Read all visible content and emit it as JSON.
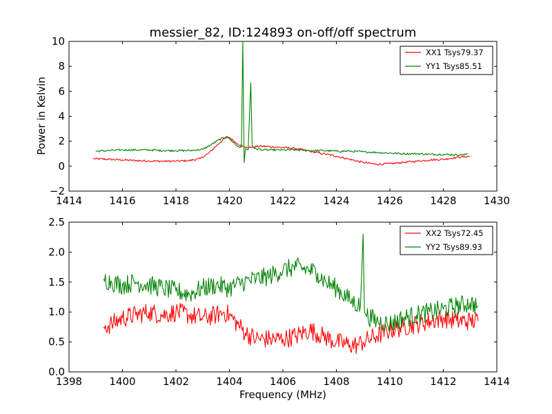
{
  "chart_data": [
    {
      "type": "line",
      "title": "messier_82, ID:124893 on-off/off spectrum",
      "xlabel": "",
      "ylabel": "Power in Kelvin",
      "xlim": [
        1414,
        1430
      ],
      "ylim": [
        -2,
        10
      ],
      "grid": false,
      "legend_position": "top-right",
      "xticks": [
        1414,
        1416,
        1418,
        1420,
        1422,
        1424,
        1426,
        1428,
        1430
      ],
      "yticks": [
        -2,
        0,
        2,
        4,
        6,
        8,
        10
      ],
      "xtick_labels": [
        "1414",
        "1416",
        "1418",
        "1420",
        "1422",
        "1424",
        "1426",
        "1428",
        "1430"
      ],
      "ytick_labels": [
        "−2",
        "0",
        "2",
        "4",
        "6",
        "8",
        "10"
      ],
      "series": [
        {
          "name": "XX1 Tsys79.37",
          "color": "#ff0000",
          "x": [
            1414.9,
            1415.5,
            1416,
            1416.5,
            1417,
            1417.5,
            1418,
            1418.5,
            1418.9,
            1419.2,
            1419.5,
            1419.8,
            1420,
            1420.3,
            1420.5,
            1420.6,
            1420.8,
            1420.9,
            1421.2,
            1421.6,
            1422,
            1422.5,
            1423,
            1423.5,
            1424,
            1424.5,
            1425,
            1425.5,
            1426,
            1426.5,
            1427,
            1427.5,
            1428,
            1428.5,
            1429
          ],
          "y": [
            0.6,
            0.55,
            0.5,
            0.45,
            0.42,
            0.4,
            0.4,
            0.45,
            0.6,
            1.0,
            1.6,
            2.2,
            2.3,
            1.8,
            1.6,
            1.5,
            1.5,
            1.55,
            1.6,
            1.55,
            1.5,
            1.4,
            1.2,
            1.0,
            0.8,
            0.55,
            0.3,
            0.15,
            0.2,
            0.3,
            0.4,
            0.5,
            0.55,
            0.7,
            0.8
          ]
        },
        {
          "name": "YY1 Tsys85.51",
          "color": "#008000",
          "x": [
            1415,
            1415.5,
            1416,
            1416.5,
            1417,
            1417.5,
            1418,
            1418.5,
            1419,
            1419.3,
            1419.6,
            1419.9,
            1420.1,
            1420.3,
            1420.45,
            1420.5,
            1420.55,
            1420.6,
            1420.7,
            1420.8,
            1420.85,
            1420.95,
            1421.3,
            1421.6,
            1422,
            1422.5,
            1423,
            1423.5,
            1424,
            1424.5,
            1425,
            1425.5,
            1426,
            1426.5,
            1427,
            1427.5,
            1428,
            1428.5,
            1428.9
          ],
          "y": [
            1.2,
            1.25,
            1.3,
            1.3,
            1.3,
            1.25,
            1.25,
            1.25,
            1.35,
            1.7,
            2.1,
            2.4,
            2.0,
            1.6,
            1.5,
            10.0,
            0.3,
            1.4,
            1.3,
            6.7,
            1.6,
            1.4,
            1.3,
            1.3,
            1.3,
            1.3,
            1.25,
            1.25,
            1.2,
            1.2,
            1.15,
            1.1,
            1.05,
            1.0,
            1.0,
            0.95,
            0.95,
            0.9,
            0.95
          ]
        }
      ]
    },
    {
      "type": "line",
      "title": "",
      "xlabel": "Frequency (MHz)",
      "ylabel": "",
      "xlim": [
        1398,
        1414
      ],
      "ylim": [
        0.0,
        2.5
      ],
      "grid": false,
      "legend_position": "top-right",
      "xticks": [
        1398,
        1400,
        1402,
        1404,
        1406,
        1408,
        1410,
        1412,
        1414
      ],
      "yticks": [
        0.0,
        0.5,
        1.0,
        1.5,
        2.0,
        2.5
      ],
      "xtick_labels": [
        "1398",
        "1400",
        "1402",
        "1404",
        "1406",
        "1408",
        "1410",
        "1412",
        "1414"
      ],
      "ytick_labels": [
        "0.0",
        "0.5",
        "1.0",
        "1.5",
        "2.0",
        "2.5"
      ],
      "series": [
        {
          "name": "XX2 Tsys72.45",
          "color": "#ff0000",
          "x": [
            1399.3,
            1399.6,
            1400,
            1400.5,
            1401,
            1401.5,
            1402,
            1402.5,
            1403,
            1403.5,
            1403.8,
            1404,
            1404.3,
            1404.6,
            1405,
            1405.5,
            1406,
            1406.5,
            1407,
            1407.5,
            1408,
            1408.5,
            1408.8,
            1409,
            1409.5,
            1410,
            1410.5,
            1411,
            1411.5,
            1412,
            1412.5,
            1413,
            1413.3
          ],
          "y": [
            0.75,
            0.8,
            0.9,
            0.95,
            1.0,
            0.95,
            1.0,
            0.95,
            0.9,
            0.95,
            1.0,
            0.95,
            0.8,
            0.65,
            0.55,
            0.55,
            0.55,
            0.6,
            0.7,
            0.6,
            0.5,
            0.45,
            0.45,
            0.5,
            0.6,
            0.7,
            0.75,
            0.8,
            0.85,
            0.9,
            0.85,
            0.85,
            0.85
          ]
        },
        {
          "name": "YY2 Tsys89.93",
          "color": "#008000",
          "x": [
            1399.3,
            1399.6,
            1400,
            1400.5,
            1401,
            1401.5,
            1402,
            1402.5,
            1403,
            1403.5,
            1404,
            1404.5,
            1405,
            1405.5,
            1406,
            1406.5,
            1407,
            1407.3,
            1407.6,
            1408,
            1408.5,
            1408.9,
            1409.0,
            1409.05,
            1409.1,
            1409.5,
            1410,
            1410.5,
            1411,
            1411.5,
            1412,
            1412.5,
            1413,
            1413.3
          ],
          "y": [
            1.55,
            1.5,
            1.45,
            1.5,
            1.45,
            1.4,
            1.35,
            1.3,
            1.4,
            1.45,
            1.4,
            1.5,
            1.55,
            1.6,
            1.7,
            1.75,
            1.7,
            1.65,
            1.5,
            1.4,
            1.2,
            1.1,
            2.3,
            1.0,
            0.95,
            0.85,
            0.8,
            0.9,
            0.95,
            1.0,
            1.05,
            1.1,
            1.15,
            1.1
          ]
        }
      ]
    }
  ]
}
